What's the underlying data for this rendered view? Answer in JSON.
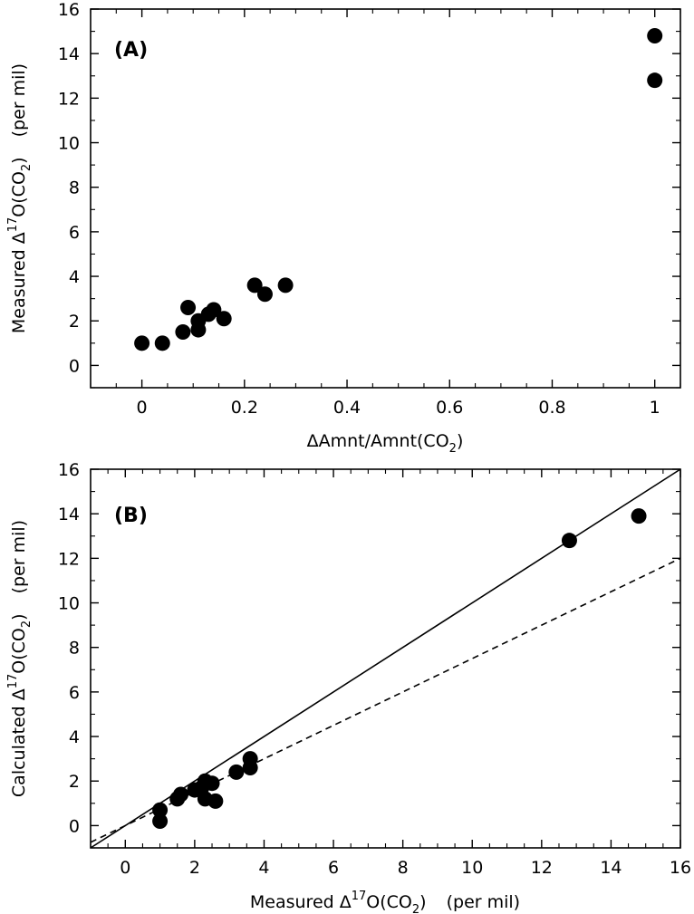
{
  "chart_data": [
    {
      "type": "scatter",
      "panel_label": "(A)",
      "xlabel": "ΔAmnt/Amnt(CO2)",
      "xlabel_parts": {
        "main": "ΔAmnt/Amnt(CO",
        "sub": "2",
        "tail": ")"
      },
      "ylabel": "Measured Δ17O(CO2)   (per mil)",
      "ylabel_parts": {
        "pre": "Measured Δ",
        "sup": "17",
        "mid": "O(CO",
        "sub": "2",
        "tail": ")",
        "unit": "(per mil)"
      },
      "xlim": [
        -0.1,
        1.05
      ],
      "ylim": [
        -1,
        16
      ],
      "xticks": [
        0,
        0.2,
        0.4,
        0.6,
        0.8,
        1
      ],
      "xtick_labels": [
        "0",
        "0.2",
        "0.4",
        "0.6",
        "0.8",
        "1"
      ],
      "yticks": [
        0,
        2,
        4,
        6,
        8,
        10,
        12,
        14,
        16
      ],
      "ytick_labels": [
        "0",
        "2",
        "4",
        "6",
        "8",
        "10",
        "12",
        "14",
        "16"
      ],
      "points": [
        {
          "x": 0.0,
          "y": 1.0
        },
        {
          "x": 0.04,
          "y": 1.0
        },
        {
          "x": 0.08,
          "y": 1.5
        },
        {
          "x": 0.09,
          "y": 2.6
        },
        {
          "x": 0.11,
          "y": 1.6
        },
        {
          "x": 0.11,
          "y": 2.0
        },
        {
          "x": 0.13,
          "y": 2.3
        },
        {
          "x": 0.14,
          "y": 2.5
        },
        {
          "x": 0.16,
          "y": 2.1
        },
        {
          "x": 0.22,
          "y": 3.6
        },
        {
          "x": 0.24,
          "y": 3.2
        },
        {
          "x": 0.28,
          "y": 3.6
        },
        {
          "x": 1.0,
          "y": 14.8
        },
        {
          "x": 1.0,
          "y": 12.8
        }
      ]
    },
    {
      "type": "scatter",
      "panel_label": "(B)",
      "xlabel": "Measured Δ17O(CO2)   (per mil)",
      "xlabel_parts": {
        "pre": "Measured Δ",
        "sup": "17",
        "mid": "O(CO",
        "sub": "2",
        "tail": ")",
        "unit": "(per mil)"
      },
      "ylabel": "Calculated Δ17O(CO2)   (per mil)",
      "ylabel_parts": {
        "pre": "Calculated Δ",
        "sup": "17",
        "mid": "O(CO",
        "sub": "2",
        "tail": ")",
        "unit": "(per mil)"
      },
      "xlim": [
        -1,
        16
      ],
      "ylim": [
        -1,
        16
      ],
      "xticks": [
        0,
        2,
        4,
        6,
        8,
        10,
        12,
        14,
        16
      ],
      "xtick_labels": [
        "0",
        "2",
        "4",
        "6",
        "8",
        "10",
        "12",
        "14",
        "16"
      ],
      "yticks": [
        0,
        2,
        4,
        6,
        8,
        10,
        12,
        14,
        16
      ],
      "ytick_labels": [
        "0",
        "2",
        "4",
        "6",
        "8",
        "10",
        "12",
        "14",
        "16"
      ],
      "points": [
        {
          "x": 1.0,
          "y": 0.7
        },
        {
          "x": 1.0,
          "y": 0.2
        },
        {
          "x": 1.5,
          "y": 1.2
        },
        {
          "x": 1.6,
          "y": 1.4
        },
        {
          "x": 2.0,
          "y": 1.6
        },
        {
          "x": 2.2,
          "y": 1.7
        },
        {
          "x": 2.3,
          "y": 2.0
        },
        {
          "x": 2.3,
          "y": 1.2
        },
        {
          "x": 2.5,
          "y": 1.9
        },
        {
          "x": 2.6,
          "y": 1.1
        },
        {
          "x": 3.2,
          "y": 2.4
        },
        {
          "x": 3.6,
          "y": 2.6
        },
        {
          "x": 3.6,
          "y": 3.0
        },
        {
          "x": 12.8,
          "y": 12.8
        },
        {
          "x": 14.8,
          "y": 13.9
        }
      ],
      "lines": [
        {
          "style": "solid",
          "x": [
            -1,
            16
          ],
          "y": [
            -1,
            16
          ]
        },
        {
          "style": "dashed",
          "x": [
            -1,
            16
          ],
          "y": [
            -0.75,
            12.0
          ]
        }
      ]
    }
  ]
}
